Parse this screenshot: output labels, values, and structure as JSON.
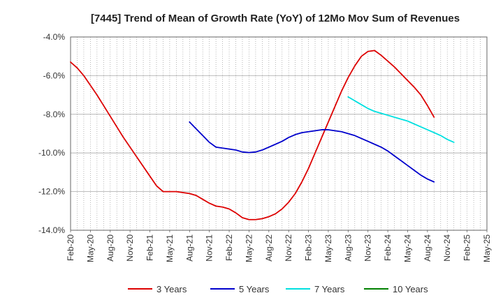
{
  "chart_data": {
    "type": "line",
    "title": "[7445]  Trend of Mean of Growth Rate (YoY) of 12Mo Mov Sum of Revenues",
    "xlabel": "",
    "ylabel": "",
    "ylim": [
      -14.0,
      -4.0
    ],
    "yticks": [
      -4.0,
      -6.0,
      -8.0,
      -10.0,
      -12.0,
      -14.0
    ],
    "ytick_labels": [
      "-4.0%",
      "-6.0%",
      "-8.0%",
      "-10.0%",
      "-12.0%",
      "-14.0%"
    ],
    "x_month_range": [
      "2020-02",
      "2025-05"
    ],
    "xtick_labels": [
      "Feb-20",
      "May-20",
      "Aug-20",
      "Nov-20",
      "Feb-21",
      "May-21",
      "Aug-21",
      "Nov-21",
      "Feb-22",
      "May-22",
      "Aug-22",
      "Nov-22",
      "Feb-23",
      "May-23",
      "Aug-23",
      "Nov-23",
      "Feb-24",
      "May-24",
      "Aug-24",
      "Nov-24",
      "Feb-25",
      "May-25"
    ],
    "grid": true,
    "legend_position": "bottom",
    "series": [
      {
        "name": "3 Years",
        "color": "#dd0000",
        "points": [
          [
            0,
            -5.3
          ],
          [
            1,
            -5.6
          ],
          [
            2,
            -6.0
          ],
          [
            3,
            -6.5
          ],
          [
            4,
            -7.0
          ],
          [
            5,
            -7.55
          ],
          [
            6,
            -8.1
          ],
          [
            7,
            -8.65
          ],
          [
            8,
            -9.2
          ],
          [
            9,
            -9.7
          ],
          [
            10,
            -10.2
          ],
          [
            11,
            -10.7
          ],
          [
            12,
            -11.2
          ],
          [
            13,
            -11.7
          ],
          [
            14,
            -12.0
          ],
          [
            15,
            -12.0
          ],
          [
            16,
            -12.0
          ],
          [
            17,
            -12.05
          ],
          [
            18,
            -12.1
          ],
          [
            19,
            -12.2
          ],
          [
            20,
            -12.4
          ],
          [
            21,
            -12.6
          ],
          [
            22,
            -12.75
          ],
          [
            23,
            -12.8
          ],
          [
            24,
            -12.9
          ],
          [
            25,
            -13.1
          ],
          [
            26,
            -13.35
          ],
          [
            27,
            -13.45
          ],
          [
            28,
            -13.45
          ],
          [
            29,
            -13.4
          ],
          [
            30,
            -13.3
          ],
          [
            31,
            -13.15
          ],
          [
            32,
            -12.9
          ],
          [
            33,
            -12.55
          ],
          [
            34,
            -12.1
          ],
          [
            35,
            -11.5
          ],
          [
            36,
            -10.8
          ],
          [
            37,
            -10.0
          ],
          [
            38,
            -9.2
          ],
          [
            39,
            -8.4
          ],
          [
            40,
            -7.6
          ],
          [
            41,
            -6.8
          ],
          [
            42,
            -6.1
          ],
          [
            43,
            -5.5
          ],
          [
            44,
            -5.0
          ],
          [
            45,
            -4.75
          ],
          [
            46,
            -4.7
          ],
          [
            47,
            -4.95
          ],
          [
            48,
            -5.25
          ],
          [
            49,
            -5.55
          ],
          [
            50,
            -5.9
          ],
          [
            51,
            -6.25
          ],
          [
            52,
            -6.6
          ],
          [
            53,
            -7.0
          ],
          [
            54,
            -7.55
          ],
          [
            55,
            -8.15
          ]
        ]
      },
      {
        "name": "5 Years",
        "color": "#0000cc",
        "points": [
          [
            18,
            -8.4
          ],
          [
            19,
            -8.75
          ],
          [
            20,
            -9.1
          ],
          [
            21,
            -9.45
          ],
          [
            22,
            -9.7
          ],
          [
            23,
            -9.75
          ],
          [
            24,
            -9.8
          ],
          [
            25,
            -9.85
          ],
          [
            26,
            -9.95
          ],
          [
            27,
            -9.98
          ],
          [
            28,
            -9.95
          ],
          [
            29,
            -9.85
          ],
          [
            30,
            -9.7
          ],
          [
            31,
            -9.55
          ],
          [
            32,
            -9.4
          ],
          [
            33,
            -9.2
          ],
          [
            34,
            -9.05
          ],
          [
            35,
            -8.95
          ],
          [
            36,
            -8.9
          ],
          [
            37,
            -8.85
          ],
          [
            38,
            -8.8
          ],
          [
            39,
            -8.8
          ],
          [
            40,
            -8.85
          ],
          [
            41,
            -8.9
          ],
          [
            42,
            -9.0
          ],
          [
            43,
            -9.1
          ],
          [
            44,
            -9.25
          ],
          [
            45,
            -9.4
          ],
          [
            46,
            -9.55
          ],
          [
            47,
            -9.7
          ],
          [
            48,
            -9.9
          ],
          [
            49,
            -10.15
          ],
          [
            50,
            -10.4
          ],
          [
            51,
            -10.65
          ],
          [
            52,
            -10.9
          ],
          [
            53,
            -11.15
          ],
          [
            54,
            -11.35
          ],
          [
            55,
            -11.5
          ]
        ]
      },
      {
        "name": "7 Years",
        "color": "#00e0e0",
        "points": [
          [
            42,
            -7.1
          ],
          [
            43,
            -7.3
          ],
          [
            44,
            -7.5
          ],
          [
            45,
            -7.7
          ],
          [
            46,
            -7.85
          ],
          [
            47,
            -7.95
          ],
          [
            48,
            -8.05
          ],
          [
            49,
            -8.15
          ],
          [
            50,
            -8.25
          ],
          [
            51,
            -8.35
          ],
          [
            52,
            -8.5
          ],
          [
            53,
            -8.65
          ],
          [
            54,
            -8.8
          ],
          [
            55,
            -8.95
          ],
          [
            56,
            -9.1
          ],
          [
            57,
            -9.3
          ],
          [
            58,
            -9.45
          ]
        ]
      },
      {
        "name": "10 Years",
        "color": "#008000",
        "points": []
      }
    ]
  }
}
